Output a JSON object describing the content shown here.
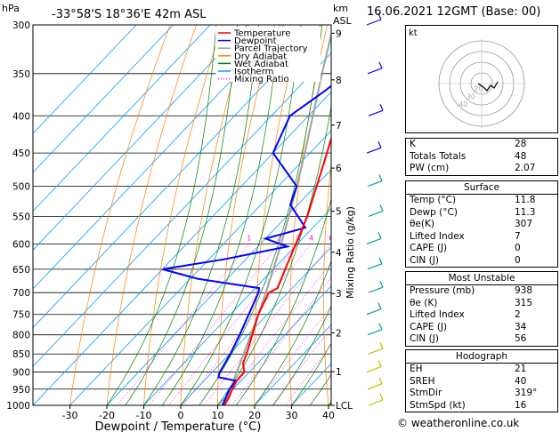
{
  "header": {
    "location": "-33°58'S  18°36'E  42m  ASL",
    "datetime": "16.06.2021  12GMT  (Base: 00)",
    "hpa_label": "hPa",
    "km_label": "km",
    "asl_label": "ASL"
  },
  "legend": {
    "items": [
      {
        "label": "Temperature",
        "color": "#ff0000"
      },
      {
        "label": "Dewpoint",
        "color": "#0000ff"
      },
      {
        "label": "Parcel Trajectory",
        "color": "#a0a0a0"
      },
      {
        "label": "Dry Adiabat",
        "color": "#ff8000"
      },
      {
        "label": "Wet Adiabat",
        "color": "#008000"
      },
      {
        "label": "Isotherm",
        "color": "#00a0ff"
      },
      {
        "label": "Mixing Ratio",
        "color": "#ff00ff"
      }
    ]
  },
  "chart_data": {
    "type": "skew-t",
    "xlabel": "Dewpoint / Temperature (°C)",
    "ylabel_right": "Mixing Ratio (g/kg)",
    "x_ticks": [
      -30,
      -20,
      -10,
      0,
      10,
      20,
      30,
      40
    ],
    "pressure_levels": [
      300,
      350,
      400,
      450,
      500,
      550,
      600,
      650,
      700,
      750,
      800,
      850,
      900,
      950,
      1000
    ],
    "km_ticks": [
      {
        "label": "9",
        "p": 308
      },
      {
        "label": "8",
        "p": 357
      },
      {
        "label": "7",
        "p": 412
      },
      {
        "label": "6",
        "p": 472
      },
      {
        "label": "5",
        "p": 541
      },
      {
        "label": "4",
        "p": 616
      },
      {
        "label": "3",
        "p": 702
      },
      {
        "label": "2",
        "p": 795
      },
      {
        "label": "1",
        "p": 899
      },
      {
        "label": "LCL",
        "p": 1000
      }
    ],
    "mixing_ratio_labels": [
      "1",
      "2",
      "3",
      "4",
      "6",
      "8",
      "10",
      "15",
      "20",
      "25"
    ],
    "temperature": [
      {
        "p": 1000,
        "t": 11.8
      },
      {
        "p": 975,
        "t": 11.0
      },
      {
        "p": 950,
        "t": 9.8
      },
      {
        "p": 925,
        "t": 8.8
      },
      {
        "p": 900,
        "t": 8.6
      },
      {
        "p": 875,
        "t": 6.0
      },
      {
        "p": 850,
        "t": 4.6
      },
      {
        "p": 800,
        "t": 1.2
      },
      {
        "p": 750,
        "t": -2.4
      },
      {
        "p": 700,
        "t": -5.2
      },
      {
        "p": 690,
        "t": -4.0
      },
      {
        "p": 650,
        "t": -6.8
      },
      {
        "p": 600,
        "t": -10.4
      },
      {
        "p": 550,
        "t": -14.4
      },
      {
        "p": 500,
        "t": -19.6
      },
      {
        "p": 450,
        "t": -25.4
      },
      {
        "p": 400,
        "t": -32.0
      },
      {
        "p": 350,
        "t": -40.0
      },
      {
        "p": 300,
        "t": -48.0
      }
    ],
    "dewpoint": [
      {
        "p": 1000,
        "t": 11.3
      },
      {
        "p": 950,
        "t": 9.0
      },
      {
        "p": 925,
        "t": 8.6
      },
      {
        "p": 915,
        "t": 3.0
      },
      {
        "p": 900,
        "t": 2.0
      },
      {
        "p": 850,
        "t": 0.2
      },
      {
        "p": 800,
        "t": -2.2
      },
      {
        "p": 750,
        "t": -5.0
      },
      {
        "p": 700,
        "t": -8.0
      },
      {
        "p": 690,
        "t": -9.0
      },
      {
        "p": 670,
        "t": -28.0
      },
      {
        "p": 650,
        "t": -40.0
      },
      {
        "p": 630,
        "t": -26.0
      },
      {
        "p": 605,
        "t": -12.0
      },
      {
        "p": 590,
        "t": -20.0
      },
      {
        "p": 570,
        "t": -12.0
      },
      {
        "p": 530,
        "t": -22.0
      },
      {
        "p": 500,
        "t": -25.0
      },
      {
        "p": 450,
        "t": -40.0
      },
      {
        "p": 400,
        "t": -45.0
      },
      {
        "p": 370,
        "t": -42.0
      },
      {
        "p": 350,
        "t": -40.5
      },
      {
        "p": 300,
        "t": -52.0
      }
    ],
    "parcel": [
      {
        "p": 1000,
        "t": 11.8
      },
      {
        "p": 950,
        "t": 9.2
      },
      {
        "p": 900,
        "t": 6.6
      },
      {
        "p": 850,
        "t": 3.8
      },
      {
        "p": 800,
        "t": 0.8
      },
      {
        "p": 750,
        "t": -2.4
      },
      {
        "p": 700,
        "t": -6.0
      },
      {
        "p": 650,
        "t": -10.0
      },
      {
        "p": 600,
        "t": -14.4
      },
      {
        "p": 550,
        "t": -19.4
      },
      {
        "p": 500,
        "t": -25.0
      },
      {
        "p": 450,
        "t": -31.4
      },
      {
        "p": 400,
        "t": -38.8
      },
      {
        "p": 350,
        "t": -47.2
      },
      {
        "p": 300,
        "t": -56.6
      }
    ]
  },
  "hodograph": {
    "label": "kt",
    "ring_labels": [
      "40",
      "30",
      "20"
    ]
  },
  "indices": [
    {
      "label": "K",
      "value": "28"
    },
    {
      "label": "Totals Totals",
      "value": "48"
    },
    {
      "label": "PW (cm)",
      "value": "2.07"
    }
  ],
  "surface": {
    "title": "Surface",
    "rows": [
      {
        "label": "Temp (°C)",
        "value": "11.8"
      },
      {
        "label": "Dewp (°C)",
        "value": "11.3"
      },
      {
        "label": "θe(K)",
        "value": "307"
      },
      {
        "label": "Lifted Index",
        "value": "7"
      },
      {
        "label": "CAPE (J)",
        "value": "0"
      },
      {
        "label": "CIN (J)",
        "value": "0"
      }
    ]
  },
  "most_unstable": {
    "title": "Most Unstable",
    "rows": [
      {
        "label": "Pressure (mb)",
        "value": "938"
      },
      {
        "label": "θe (K)",
        "value": "315"
      },
      {
        "label": "Lifted Index",
        "value": "2"
      },
      {
        "label": "CAPE (J)",
        "value": "34"
      },
      {
        "label": "CIN (J)",
        "value": "56"
      }
    ]
  },
  "hodograph_table": {
    "title": "Hodograph",
    "rows": [
      {
        "label": "EH",
        "value": "21"
      },
      {
        "label": "SREH",
        "value": "40"
      },
      {
        "label": "StmDir",
        "value": "319°"
      },
      {
        "label": "StmSpd (kt)",
        "value": "16"
      }
    ]
  },
  "credit": "© weatheronline.co.uk"
}
